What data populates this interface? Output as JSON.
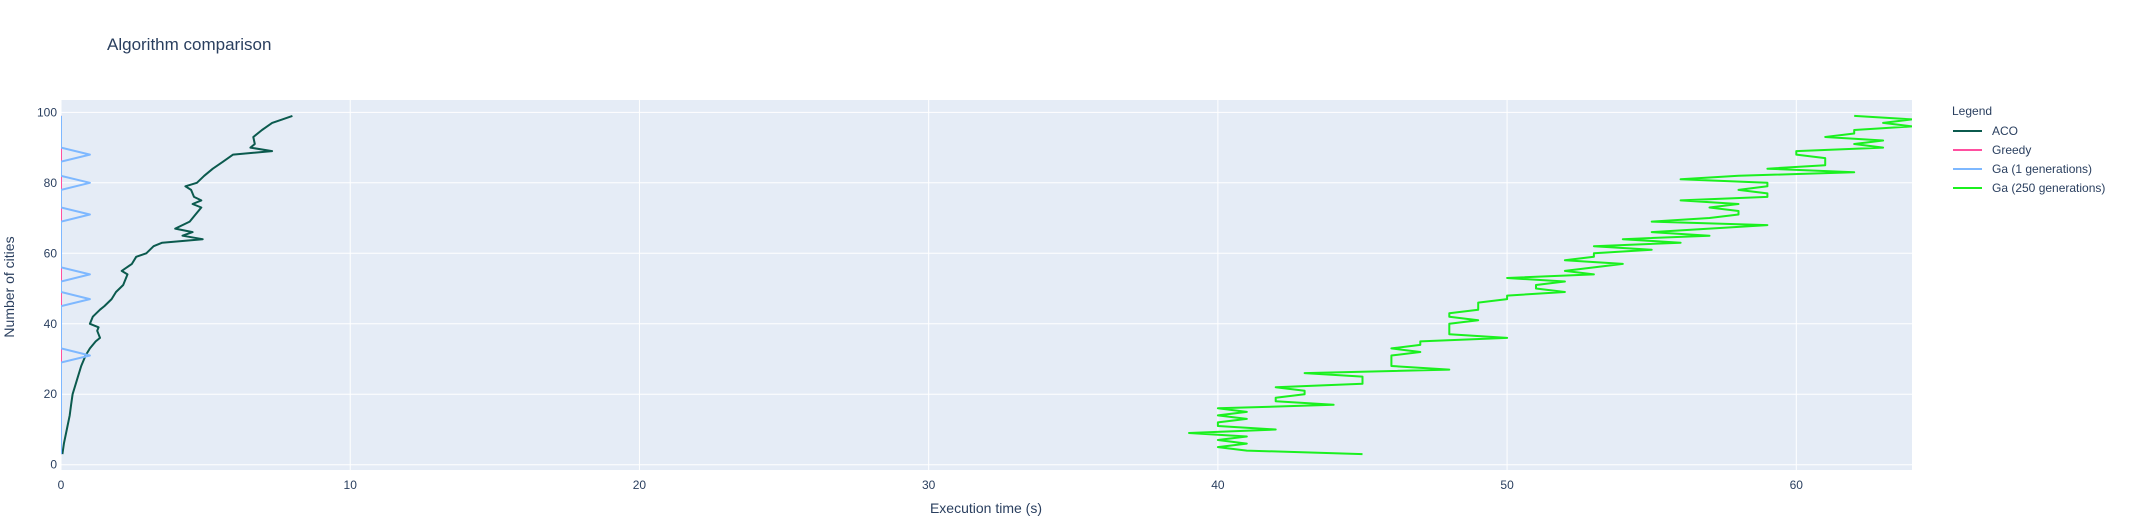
{
  "chart_data": {
    "type": "line",
    "title": "Algorithm comparison",
    "xlabel": "Execution time (s)",
    "ylabel": "Number of cities",
    "xlim": [
      0,
      64
    ],
    "ylim": [
      -1.5,
      103.5
    ],
    "xticks": [
      0,
      10,
      20,
      30,
      40,
      50,
      60
    ],
    "yticks": [
      0,
      20,
      40,
      60,
      80,
      100
    ],
    "grid": true,
    "legend": {
      "title": "Legend",
      "placement": "top-right"
    },
    "colors": {
      "plot_bg": "#E5ECF6",
      "grid": "#ffffff",
      "text": "#2a3f5f"
    },
    "series": [
      {
        "name": "ACO",
        "color": "#0b5a4e",
        "points": [
          [
            0.05,
            3
          ],
          [
            0.1,
            6
          ],
          [
            0.2,
            10
          ],
          [
            0.3,
            14
          ],
          [
            0.35,
            17
          ],
          [
            0.4,
            20
          ],
          [
            0.55,
            24
          ],
          [
            0.7,
            28
          ],
          [
            0.85,
            31
          ],
          [
            1.0,
            33
          ],
          [
            1.2,
            35
          ],
          [
            1.35,
            36
          ],
          [
            1.3,
            37
          ],
          [
            1.25,
            38
          ],
          [
            1.3,
            39
          ],
          [
            1.0,
            40
          ],
          [
            1.1,
            42
          ],
          [
            1.35,
            44
          ],
          [
            1.5,
            45
          ],
          [
            1.75,
            47
          ],
          [
            1.9,
            49
          ],
          [
            2.15,
            51
          ],
          [
            2.2,
            52
          ],
          [
            2.3,
            54
          ],
          [
            2.1,
            55
          ],
          [
            2.45,
            57
          ],
          [
            2.6,
            59
          ],
          [
            2.95,
            60
          ],
          [
            3.2,
            62
          ],
          [
            3.5,
            63
          ],
          [
            4.9,
            64
          ],
          [
            4.2,
            65
          ],
          [
            4.55,
            66
          ],
          [
            3.95,
            67
          ],
          [
            4.45,
            69
          ],
          [
            4.65,
            71
          ],
          [
            4.85,
            73
          ],
          [
            4.55,
            74
          ],
          [
            4.85,
            75
          ],
          [
            4.6,
            76
          ],
          [
            4.5,
            78
          ],
          [
            4.3,
            79
          ],
          [
            4.7,
            80
          ],
          [
            4.95,
            82
          ],
          [
            5.25,
            84
          ],
          [
            5.6,
            86
          ],
          [
            5.95,
            88
          ],
          [
            7.3,
            89
          ],
          [
            6.55,
            90
          ],
          [
            6.7,
            91
          ],
          [
            6.65,
            93
          ],
          [
            6.95,
            95
          ],
          [
            7.3,
            97
          ],
          [
            7.65,
            98
          ],
          [
            8.0,
            99
          ]
        ]
      },
      {
        "name": "Greedy",
        "color": "#ff4fa0",
        "points": [
          [
            0,
            3
          ],
          [
            0,
            99
          ]
        ]
      },
      {
        "name": "Ga (1 generations)",
        "color": "#7eb8ff",
        "points": [
          [
            0,
            3
          ],
          [
            0,
            29
          ],
          [
            1.0,
            31
          ],
          [
            0,
            33
          ],
          [
            0,
            45
          ],
          [
            1.0,
            47
          ],
          [
            0,
            49
          ],
          [
            0,
            52
          ],
          [
            1.0,
            54
          ],
          [
            0,
            56
          ],
          [
            0,
            69
          ],
          [
            1.0,
            71
          ],
          [
            0,
            73
          ],
          [
            0,
            78
          ],
          [
            1.0,
            80
          ],
          [
            0,
            82
          ],
          [
            0,
            86
          ],
          [
            1.0,
            88
          ],
          [
            0,
            90
          ],
          [
            0,
            99
          ]
        ]
      },
      {
        "name": "Ga (250 generations)",
        "color": "#1bf01f",
        "points": [
          [
            45.0,
            3
          ],
          [
            41.0,
            4
          ],
          [
            40.0,
            5
          ],
          [
            41.0,
            6
          ],
          [
            40.0,
            7
          ],
          [
            41.0,
            8
          ],
          [
            39.0,
            9
          ],
          [
            42.0,
            10
          ],
          [
            40.0,
            11
          ],
          [
            40.0,
            12
          ],
          [
            41.0,
            13
          ],
          [
            40.0,
            14
          ],
          [
            41.0,
            15
          ],
          [
            40.0,
            16
          ],
          [
            44.0,
            17
          ],
          [
            42.0,
            18
          ],
          [
            42.0,
            19
          ],
          [
            43.0,
            20
          ],
          [
            43.0,
            21
          ],
          [
            42.0,
            22
          ],
          [
            45.0,
            23
          ],
          [
            45.0,
            24
          ],
          [
            45.0,
            25
          ],
          [
            43.0,
            26
          ],
          [
            48.0,
            27
          ],
          [
            46.0,
            28
          ],
          [
            46.0,
            29
          ],
          [
            46.0,
            30
          ],
          [
            46.0,
            31
          ],
          [
            47.0,
            32
          ],
          [
            46.0,
            33
          ],
          [
            47.0,
            34
          ],
          [
            47.0,
            35
          ],
          [
            50.0,
            36
          ],
          [
            48.0,
            37
          ],
          [
            48.0,
            38
          ],
          [
            48.0,
            39
          ],
          [
            48.0,
            40
          ],
          [
            49.0,
            41
          ],
          [
            48.0,
            42
          ],
          [
            48.0,
            43
          ],
          [
            49.0,
            44
          ],
          [
            49.0,
            45
          ],
          [
            49.0,
            46
          ],
          [
            50.0,
            47
          ],
          [
            50.0,
            48
          ],
          [
            52.0,
            49
          ],
          [
            51.0,
            50
          ],
          [
            51.0,
            51
          ],
          [
            52.0,
            52
          ],
          [
            50.0,
            53
          ],
          [
            53.0,
            54
          ],
          [
            52.0,
            55
          ],
          [
            53.0,
            56
          ],
          [
            54.0,
            57
          ],
          [
            52.0,
            58
          ],
          [
            53.0,
            59
          ],
          [
            53.0,
            60
          ],
          [
            55.0,
            61
          ],
          [
            53.0,
            62
          ],
          [
            56.0,
            63
          ],
          [
            54.0,
            64
          ],
          [
            57.0,
            65
          ],
          [
            55.0,
            66
          ],
          [
            57.0,
            67
          ],
          [
            59.0,
            68
          ],
          [
            55.0,
            69
          ],
          [
            57.0,
            70
          ],
          [
            58.0,
            71
          ],
          [
            58.0,
            72
          ],
          [
            57.0,
            73
          ],
          [
            58.0,
            74
          ],
          [
            56.0,
            75
          ],
          [
            59.0,
            76
          ],
          [
            59.0,
            77
          ],
          [
            58.0,
            78
          ],
          [
            59.0,
            79
          ],
          [
            59.0,
            80
          ],
          [
            56.0,
            81
          ],
          [
            58.0,
            82
          ],
          [
            62.0,
            83
          ],
          [
            59.0,
            84
          ],
          [
            61.0,
            85
          ],
          [
            61.0,
            86
          ],
          [
            61.0,
            87
          ],
          [
            60.0,
            88
          ],
          [
            60.0,
            89
          ],
          [
            63.0,
            90
          ],
          [
            62.0,
            91
          ],
          [
            63.0,
            92
          ],
          [
            61.0,
            93
          ],
          [
            62.0,
            94
          ],
          [
            62.0,
            95
          ],
          [
            64.0,
            96
          ],
          [
            63.0,
            97
          ],
          [
            64.0,
            98
          ],
          [
            62.0,
            99
          ]
        ]
      }
    ]
  }
}
